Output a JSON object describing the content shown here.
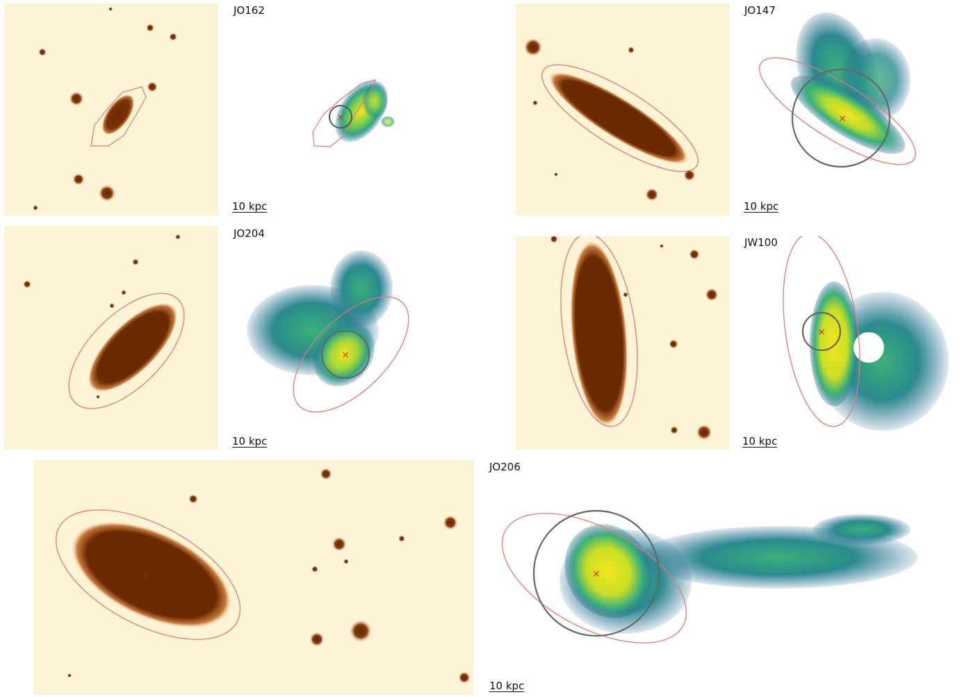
{
  "galaxies": [
    {
      "id": "jo162",
      "name": "JO162",
      "scale_bar": "10 kpc"
    },
    {
      "id": "jo147",
      "name": "JO147",
      "scale_bar": "10 kpc"
    },
    {
      "id": "jo204",
      "name": "JO204",
      "scale_bar": "10 kpc"
    },
    {
      "id": "jw100",
      "name": "JW100",
      "scale_bar": "10 kpc"
    },
    {
      "id": "jo206",
      "name": "JO206",
      "scale_bar": "10 kpc"
    }
  ],
  "colors": {
    "optical_background": "#fdf3d6",
    "optical_core": "#6b2a02",
    "optical_halo": "#d2874a",
    "contour": "#e07a78",
    "circle": "#666666",
    "center_marker": "#d0302a",
    "emission_low": "#2f7f95",
    "emission_mid": "#3bb17a",
    "emission_high": "#f4e51e"
  }
}
